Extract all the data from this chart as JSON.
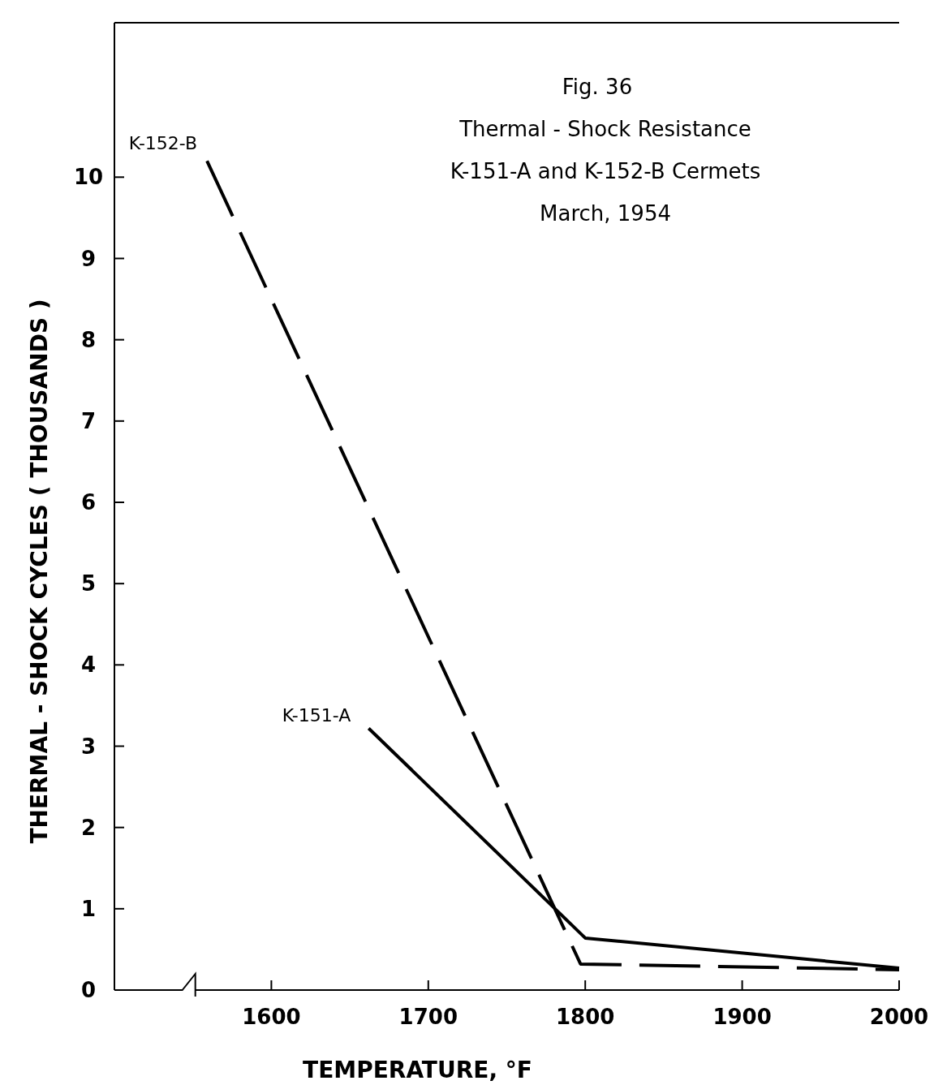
{
  "chart_data": {
    "type": "line",
    "title": "Fig. 36",
    "subtitle": "Thermal - Shock  Resistance\nK-151-A and K-152-B Cermets\nMarch, 1954",
    "xlabel": "TEMPERATURE,   °F",
    "ylabel": "THERMAL - SHOCK    CYCLES    ( THOUSANDS )",
    "xlim": [
      1500,
      2000
    ],
    "ylim": [
      0,
      11.9
    ],
    "xticks": [
      1600,
      1700,
      1800,
      1900,
      2000
    ],
    "yticks": [
      0,
      1,
      2,
      3,
      4,
      5,
      6,
      7,
      8,
      9,
      10
    ],
    "grid": false,
    "legend": false,
    "marker": "none",
    "series": [
      {
        "name": "K-152-B",
        "color": "#000000",
        "line_style": "dashed",
        "x": [
          1559,
          1797,
          2000
        ],
        "values": [
          10.2,
          0.32,
          0.25
        ]
      },
      {
        "name": "K-151-A",
        "color": "#000000",
        "line_style": "solid",
        "x": [
          1662,
          1800,
          2000
        ],
        "values": [
          3.22,
          0.64,
          0.27
        ]
      }
    ]
  }
}
